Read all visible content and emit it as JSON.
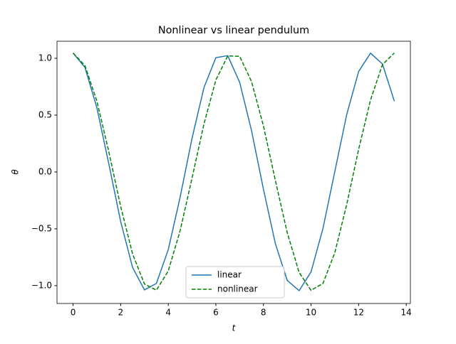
{
  "chart_data": {
    "type": "line",
    "title": "Nonlinear vs linear pendulum",
    "xlabel": "t",
    "ylabel": "θ",
    "x": [
      0,
      0.5,
      1,
      1.5,
      2,
      2.5,
      3,
      3.5,
      4,
      4.5,
      5,
      5.5,
      6,
      6.5,
      7,
      7.5,
      8,
      8.5,
      9,
      9.5,
      10,
      10.5,
      11,
      11.5,
      12,
      12.5,
      13,
      13.5
    ],
    "series": [
      {
        "name": "linear",
        "color": "#1f77b4",
        "dash": false,
        "values": [
          1.047,
          0.919,
          0.566,
          0.074,
          -0.436,
          -0.839,
          -1.037,
          -0.981,
          -0.684,
          -0.221,
          0.297,
          0.742,
          1.005,
          1.023,
          0.789,
          0.363,
          -0.152,
          -0.63,
          -0.954,
          -1.044,
          -0.879,
          -0.498,
          0.005,
          0.506,
          0.884,
          1.045,
          0.95,
          0.623
        ]
      },
      {
        "name": "nonlinear",
        "color": "#008000",
        "dash": true,
        "values": [
          1.047,
          0.935,
          0.624,
          0.18,
          -0.303,
          -0.721,
          -0.986,
          -1.04,
          -0.871,
          -0.516,
          -0.053,
          0.422,
          0.809,
          1.021,
          1.017,
          0.795,
          0.405,
          -0.074,
          -0.535,
          -0.884,
          -1.041,
          -0.981,
          -0.709,
          -0.285,
          0.199,
          0.634,
          0.944,
          1.047
        ]
      }
    ],
    "xlim": [
      -0.675,
      14.175
    ],
    "ylim": [
      -1.157,
      1.15
    ],
    "xticks": [
      0,
      2,
      4,
      6,
      8,
      10,
      12,
      14
    ],
    "yticks": [
      {
        "value": -1.0,
        "label": "−1.0"
      },
      {
        "value": -0.5,
        "label": "−0.5"
      },
      {
        "value": 0.0,
        "label": "0.0"
      },
      {
        "value": 0.5,
        "label": "0.5"
      },
      {
        "value": 1.0,
        "label": "1.0"
      }
    ],
    "legend": "lower center"
  }
}
